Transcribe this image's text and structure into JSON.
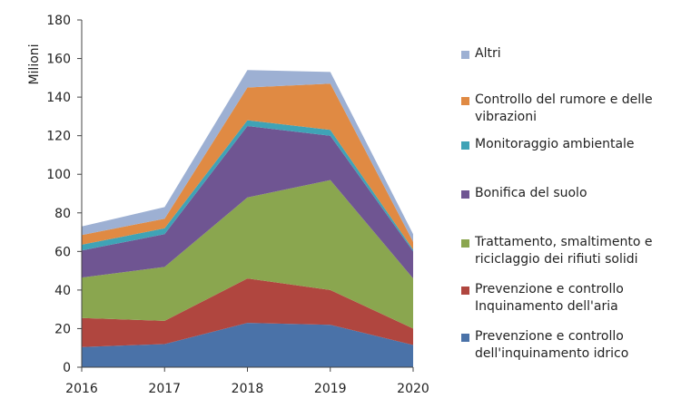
{
  "chart_data": {
    "type": "area",
    "stacked": true,
    "x": [
      2016,
      2017,
      2018,
      2019,
      2020
    ],
    "ylabel": "Milioni",
    "ylim": [
      0,
      180
    ],
    "yticks": [
      0,
      20,
      40,
      60,
      80,
      100,
      120,
      140,
      160,
      180
    ],
    "grid": false,
    "legend_position": "right",
    "series": [
      {
        "name": "Prevenzione e controllo dell'inquinamento idrico",
        "color": "#4a72a8",
        "values": [
          10.5,
          12,
          23,
          22,
          11.5
        ]
      },
      {
        "name": "Prevenzione e controllo Inquinamento dell'aria",
        "color": "#b0463f",
        "values": [
          15,
          12,
          23,
          18,
          8.5
        ]
      },
      {
        "name": "Trattamento, smaltimento e riciclaggio dei rifiuti solidi",
        "color": "#8aa64f",
        "values": [
          21,
          28,
          42,
          57,
          26
        ]
      },
      {
        "name": "Bonifica del suolo",
        "color": "#6f5592",
        "values": [
          14,
          17,
          37,
          23,
          14
        ]
      },
      {
        "name": "Monitoraggio ambientale",
        "color": "#3fa3b6",
        "values": [
          3,
          3,
          3,
          3,
          1
        ]
      },
      {
        "name": "Controllo del rumore e delle vibrazioni",
        "color": "#e08a43",
        "values": [
          5,
          5,
          17,
          24,
          4
        ]
      },
      {
        "name": "Altri",
        "color": "#9db0d3",
        "values": [
          4.5,
          6,
          9,
          6,
          4
        ]
      }
    ]
  },
  "legend_items": [
    {
      "label": "Altri",
      "color": "#9db0d3"
    },
    {
      "label": "Controllo del rumore e delle\nvibrazioni",
      "color": "#e08a43"
    },
    {
      "label": "Monitoraggio ambientale",
      "color": "#3fa3b6"
    },
    {
      "label": "Bonifica del suolo",
      "color": "#6f5592"
    },
    {
      "label": "Trattamento, smaltimento e\nriciclaggio dei rifiuti solidi",
      "color": "#8aa64f"
    },
    {
      "label": "Prevenzione e controllo\nInquinamento dell'aria",
      "color": "#b0463f"
    },
    {
      "label": "Prevenzione e controllo\ndell'inquinamento idrico",
      "color": "#4a72a8"
    }
  ]
}
